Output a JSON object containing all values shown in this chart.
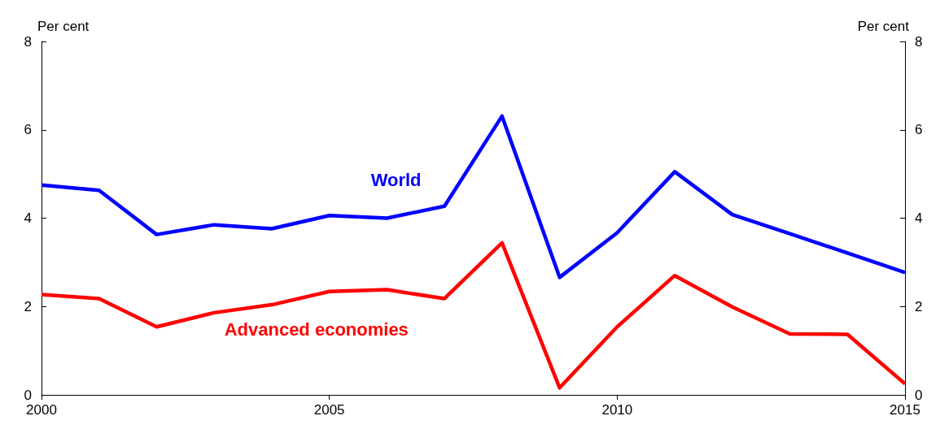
{
  "chart_data": {
    "type": "line",
    "ylabel": "Per cent",
    "y2label": "Per cent",
    "x": [
      2000,
      2001,
      2002,
      2003,
      2004,
      2005,
      2006,
      2007,
      2008,
      2009,
      2010,
      2011,
      2012,
      2013,
      2014,
      2015
    ],
    "series": [
      {
        "name": "World",
        "color": "#0000ff",
        "values": [
          4.75,
          4.63,
          3.63,
          3.85,
          3.76,
          4.06,
          4.0,
          4.27,
          6.31,
          2.66,
          3.67,
          5.05,
          4.08,
          3.65,
          3.21,
          2.77
        ]
      },
      {
        "name": "Advanced economies",
        "color": "#ff0000",
        "values": [
          2.27,
          2.18,
          1.54,
          1.86,
          2.04,
          2.34,
          2.38,
          2.18,
          3.44,
          0.16,
          1.54,
          2.7,
          1.99,
          1.38,
          1.37,
          0.25
        ]
      }
    ],
    "xlim": [
      2000,
      2015
    ],
    "xticks": [
      2000,
      2005,
      2010,
      2015
    ],
    "ylim": [
      0,
      8
    ],
    "yticks": [
      0,
      2,
      4,
      6,
      8
    ],
    "y2lim": [
      0,
      8
    ],
    "y2ticks": [
      0,
      2,
      4,
      6,
      8
    ],
    "grid": false,
    "legend": false,
    "marker": "none",
    "line_style": "solid"
  }
}
